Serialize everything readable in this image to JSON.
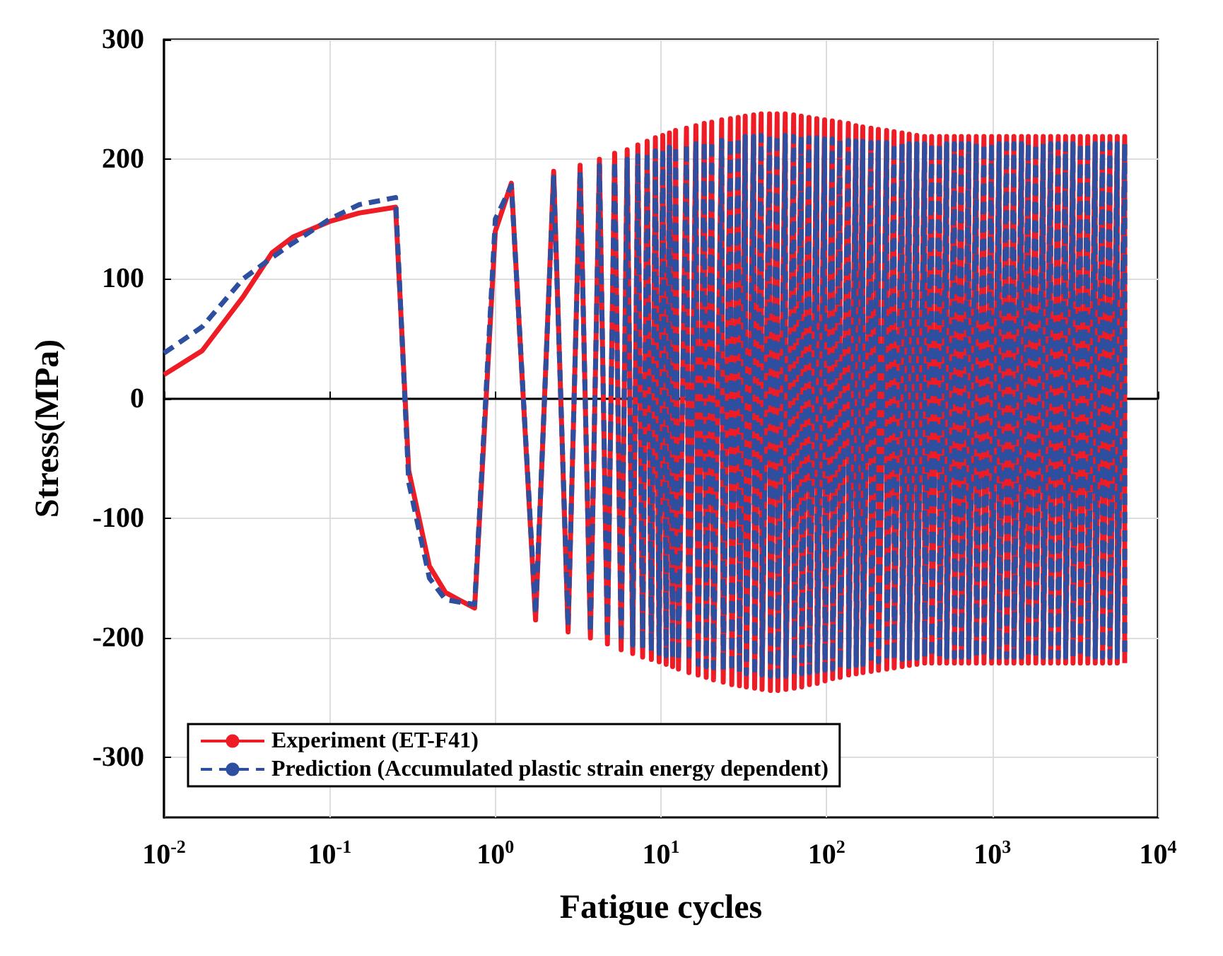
{
  "chart_data": {
    "type": "line",
    "xlabel": "Fatigue cycles",
    "ylabel": "Stress(MPa)",
    "log": "x",
    "grid": true,
    "legend": "bottom left",
    "marker": "none",
    "xlim": [
      0.01,
      10000
    ],
    "xticks": [
      {
        "value": 0.01,
        "label": "10$^{-2}$"
      },
      {
        "value": 0.1,
        "label": "10$^{-1}$"
      },
      {
        "value": 1,
        "label": "10$^{0}$"
      },
      {
        "value": 10,
        "label": "10$^{1}$"
      },
      {
        "value": 100,
        "label": "10$^{2}$"
      },
      {
        "value": 1000,
        "label": "10$^{3}$"
      },
      {
        "value": 10000,
        "label": "10$^{4}$"
      }
    ],
    "ylim": [
      -350,
      300
    ],
    "yticks": [
      -300,
      -200,
      -100,
      0,
      100,
      200,
      300
    ],
    "x": [
      0.01,
      0.017,
      0.03,
      0.045,
      0.06,
      0.1,
      0.15,
      0.25,
      0.3,
      0.4,
      0.5,
      0.6,
      0.75,
      1.0,
      1.25,
      1.75,
      2.25,
      2.75,
      3.25,
      3.75,
      4.25,
      4.75,
      5.25,
      5.75,
      6.25,
      6.75,
      7.25,
      7.75,
      8.25,
      8.75,
      9.25,
      9.75,
      10.25,
      10.75,
      11.25,
      11.75,
      12.25,
      12.75,
      14.25,
      14.75,
      16.25,
      16.75,
      18.25,
      18.75,
      20.25,
      20.75,
      23.25,
      23.75,
      26.25,
      26.75,
      29.25,
      29.75,
      32.25,
      32.75,
      36.25,
      36.75,
      40.25,
      40.75,
      45.25,
      45.75,
      50.25,
      50.75,
      56.25,
      56.75,
      63.25,
      63.75,
      70.25,
      70.75,
      78.25,
      78.75,
      87.25,
      87.75,
      97.25,
      97.75,
      108.25,
      108.75,
      120.25,
      120.75,
      135.25,
      135.75,
      150.25,
      150.75,
      165.25,
      165.75,
      185.25,
      185.75,
      205.25,
      205.75,
      230.25,
      230.75,
      255.25,
      255.75,
      285.25,
      285.75,
      315.25,
      315.75,
      350.25,
      350.75,
      390.25,
      390.75,
      430.25,
      430.75,
      480.25,
      480.75,
      530.25,
      530.75,
      590.25,
      590.75,
      650.25,
      650.75,
      720.25,
      720.75,
      800.25,
      800.75,
      890.25,
      890.75,
      990.25,
      990.75,
      1100.25,
      1100.75,
      1220.25,
      1220.75,
      1350.25,
      1350.75,
      1500.25,
      1500.75,
      1650.25,
      1650.75,
      1830.25,
      1830.75,
      2030.25,
      2030.75,
      2250.25,
      2250.75,
      2500.25,
      2500.75,
      2770.25,
      2770.75,
      3070.25,
      3070.75,
      3400.25,
      3400.75,
      3770.25,
      3770.75,
      4180.25,
      4180.75,
      4630.25,
      4630.75,
      5130.25,
      5130.75,
      5680.25,
      5680.75,
      6300.25,
      6300.75
    ],
    "series": [
      {
        "name": "Experiment (ET-F41)",
        "color": "#ee1c25",
        "line_style": "solid",
        "values": [
          20,
          40,
          85,
          122,
          135,
          148,
          155,
          160,
          -60,
          -140,
          -162,
          -168,
          -175,
          140,
          180,
          -185,
          190,
          -195,
          195,
          -200,
          200,
          -205,
          205,
          -210,
          208,
          -213,
          212,
          -216,
          215,
          -218,
          218,
          -220,
          220,
          -222,
          222,
          -224,
          224,
          -226,
          226,
          -229,
          228,
          -231,
          230,
          -233,
          231,
          -235,
          233,
          -237,
          234,
          -239,
          235,
          -240,
          236,
          -241,
          237,
          -242,
          238,
          -243,
          238,
          -244,
          238,
          -244,
          238,
          -243,
          237,
          -242,
          236,
          -241,
          235,
          -239,
          234,
          -238,
          233,
          -236,
          232,
          -234,
          231,
          -233,
          230,
          -231,
          228,
          -230,
          227,
          -229,
          226,
          -228,
          225,
          -227,
          224,
          -226,
          223,
          -225,
          222,
          -224,
          221,
          -223,
          220,
          -222,
          219,
          -221,
          219,
          -221,
          219,
          -221,
          219,
          -221,
          219,
          -221,
          219,
          -221,
          219,
          -221,
          219,
          -221,
          219,
          -221,
          219,
          -221,
          219,
          -221,
          219,
          -221,
          219,
          -221,
          219,
          -221,
          219,
          -221,
          219,
          -221,
          219,
          -221,
          219,
          -221,
          219,
          -221,
          219,
          -221,
          219,
          -221,
          219,
          -221,
          219,
          -221,
          219,
          -221,
          219,
          -221,
          219,
          -221,
          219,
          -221,
          219,
          -221
        ]
      },
      {
        "name": "Prediction (Accumulated plastic strain energy dependent)",
        "color": "#2e4fa0",
        "line_style": "dashed",
        "values": [
          38,
          60,
          100,
          118,
          130,
          150,
          162,
          168,
          -70,
          -150,
          -168,
          -170,
          -172,
          150,
          178,
          -180,
          185,
          -190,
          190,
          -195,
          195,
          -200,
          198,
          -203,
          200,
          -206,
          203,
          -209,
          205,
          -211,
          207,
          -213,
          208,
          -215,
          210,
          -217,
          211,
          -218,
          212,
          -220,
          213,
          -222,
          214,
          -224,
          215,
          -225,
          216,
          -227,
          217,
          -228,
          218,
          -229,
          219,
          -230,
          219,
          -231,
          220,
          -231,
          220,
          -232,
          220,
          -232,
          220,
          -232,
          219,
          -231,
          219,
          -230,
          218,
          -229,
          218,
          -228,
          217,
          -227,
          217,
          -226,
          216,
          -225,
          216,
          -224,
          215,
          -223,
          215,
          -222,
          214,
          -221,
          214,
          -220,
          214,
          -219,
          213,
          -218,
          213,
          -218,
          213,
          -217,
          213,
          -217,
          213,
          -216,
          213,
          -216,
          213,
          -216,
          213,
          -216,
          213,
          -216,
          213,
          -216,
          213,
          -216,
          213,
          -216,
          213,
          -216,
          213,
          -216,
          213,
          -216,
          213,
          -216,
          213,
          -216,
          213,
          -216,
          213,
          -216,
          213,
          -216,
          213,
          -216,
          213,
          -216,
          213,
          -216,
          213,
          -216,
          213,
          -216,
          213,
          -216,
          213,
          -216,
          213,
          -216,
          213,
          -216,
          213,
          -216,
          213,
          -216,
          213,
          -216
        ]
      }
    ]
  }
}
